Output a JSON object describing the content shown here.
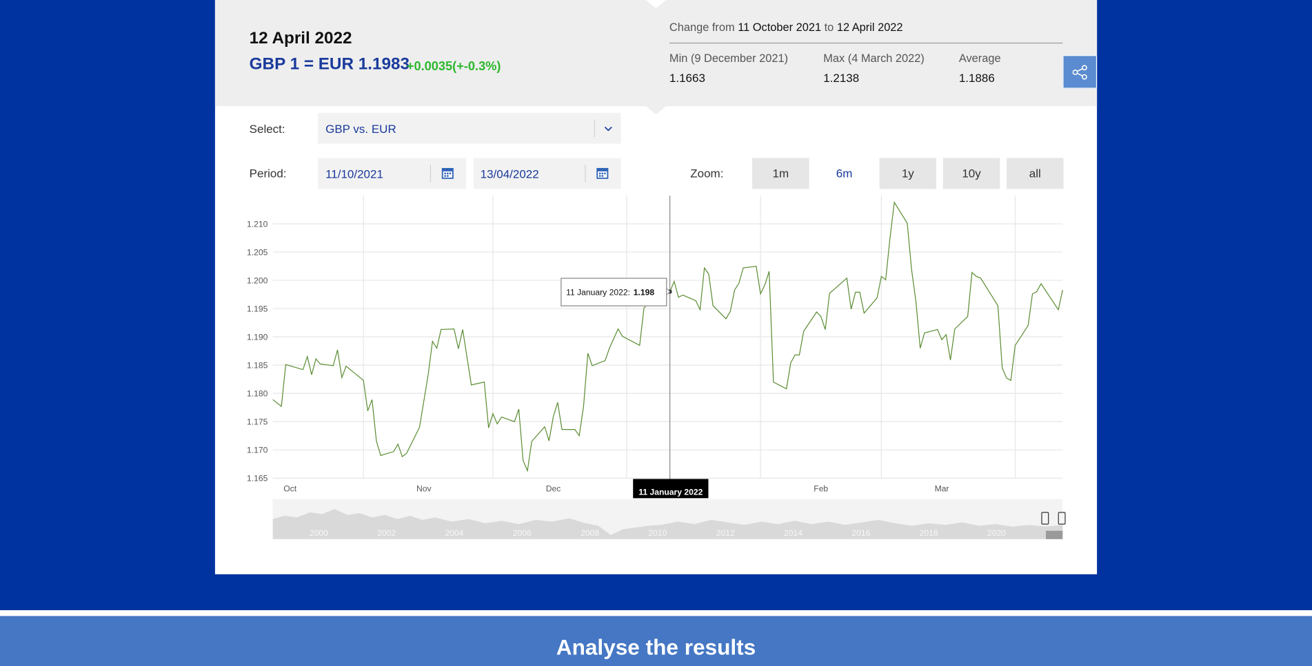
{
  "header": {
    "date": "12 April 2022",
    "rate": "GBP 1 = EUR 1.1983",
    "change": "+0.0035(+-0.3%)"
  },
  "stats": {
    "change_prefix": "Change from",
    "from": "11 October 2021",
    "to_word": "to",
    "to": "12 April 2022",
    "min_label": "Min (9 December 2021)",
    "min_value": "1.1663",
    "max_label": "Max (4 March 2022)",
    "max_value": "1.2138",
    "avg_label": "Average",
    "avg_value": "1.1886"
  },
  "controls": {
    "select_label": "Select:",
    "select_value": "GBP vs. EUR",
    "period_label": "Period:",
    "period_from": "11/10/2021",
    "period_to": "13/04/2022",
    "zoom_label": "Zoom:",
    "zoom_options": [
      "1m",
      "6m",
      "1y",
      "10y",
      "all"
    ],
    "zoom_active": "6m"
  },
  "chart_data": {
    "type": "line",
    "color": "#5b8c32",
    "x": [
      "2021-10-11",
      "2021-10-13",
      "2021-10-14",
      "2021-10-18",
      "2021-10-19",
      "2021-10-20",
      "2021-10-21",
      "2021-10-22",
      "2021-10-25",
      "2021-10-26",
      "2021-10-27",
      "2021-10-28",
      "2021-11-01",
      "2021-11-02",
      "2021-11-03",
      "2021-11-04",
      "2021-11-05",
      "2021-11-08",
      "2021-11-09",
      "2021-11-10",
      "2021-11-11",
      "2021-11-14",
      "2021-11-16",
      "2021-11-17",
      "2021-11-18",
      "2021-11-19",
      "2021-11-22",
      "2021-11-23",
      "2021-11-24",
      "2021-11-26",
      "2021-11-29",
      "2021-11-30",
      "2021-12-01",
      "2021-12-02",
      "2021-12-03",
      "2021-12-06",
      "2021-12-07",
      "2021-12-08",
      "2021-12-09",
      "2021-12-10",
      "2021-12-13",
      "2021-12-14",
      "2021-12-15",
      "2021-12-16",
      "2021-12-17",
      "2021-12-20",
      "2021-12-21",
      "2021-12-22",
      "2021-12-23",
      "2021-12-24",
      "2021-12-27",
      "2021-12-28",
      "2021-12-30",
      "2021-12-31",
      "2022-01-04",
      "2022-01-05",
      "2022-01-07",
      "2022-01-11",
      "2022-01-12",
      "2022-01-13",
      "2022-01-14",
      "2022-01-17",
      "2022-01-18",
      "2022-01-19",
      "2022-01-20",
      "2022-01-21",
      "2022-01-24",
      "2022-01-25",
      "2022-01-26",
      "2022-01-27",
      "2022-01-28",
      "2022-01-31",
      "2022-02-01",
      "2022-02-02",
      "2022-02-03",
      "2022-02-04",
      "2022-02-07",
      "2022-02-08",
      "2022-02-09",
      "2022-02-10",
      "2022-02-11",
      "2022-02-14",
      "2022-02-15",
      "2022-02-16",
      "2022-02-17",
      "2022-02-21",
      "2022-02-22",
      "2022-02-23",
      "2022-02-24",
      "2022-02-25",
      "2022-02-28",
      "2022-03-01",
      "2022-03-02",
      "2022-03-03",
      "2022-03-04",
      "2022-03-07",
      "2022-03-08",
      "2022-03-09",
      "2022-03-10",
      "2022-03-11",
      "2022-03-14",
      "2022-03-15",
      "2022-03-16",
      "2022-03-17",
      "2022-03-18",
      "2022-03-21",
      "2022-03-22",
      "2022-03-23",
      "2022-03-24",
      "2022-03-28",
      "2022-03-29",
      "2022-03-30",
      "2022-03-31",
      "2022-04-01",
      "2022-04-04",
      "2022-04-05",
      "2022-04-06",
      "2022-04-07",
      "2022-04-11",
      "2022-04-12"
    ],
    "values": [
      1.1789,
      1.1777,
      1.1851,
      1.1842,
      1.1865,
      1.1833,
      1.1861,
      1.1852,
      1.1849,
      1.1877,
      1.1828,
      1.1848,
      1.1823,
      1.1769,
      1.1789,
      1.1716,
      1.169,
      1.1697,
      1.171,
      1.1688,
      1.1694,
      1.174,
      1.1833,
      1.1892,
      1.188,
      1.1913,
      1.1914,
      1.1879,
      1.1913,
      1.1815,
      1.182,
      1.1739,
      1.1764,
      1.1746,
      1.1758,
      1.175,
      1.1772,
      1.1681,
      1.1663,
      1.1715,
      1.1741,
      1.1716,
      1.1759,
      1.1784,
      1.1736,
      1.1736,
      1.1725,
      1.1777,
      1.1871,
      1.1849,
      1.1858,
      1.188,
      1.1914,
      1.1901,
      1.1885,
      1.1951,
      1.1968,
      1.198,
      1.1998,
      1.197,
      1.1974,
      1.1964,
      1.1948,
      1.2022,
      1.2011,
      1.1955,
      1.1932,
      1.1945,
      1.1983,
      1.1995,
      1.2022,
      1.2025,
      1.1976,
      1.1992,
      1.2016,
      1.182,
      1.1808,
      1.1854,
      1.1868,
      1.1868,
      1.191,
      1.1944,
      1.1936,
      1.1913,
      1.1977,
      1.2004,
      1.1949,
      1.1979,
      1.1979,
      1.1942,
      1.1969,
      1.2007,
      1.2001,
      1.2075,
      1.2138,
      1.2101,
      1.2019,
      1.1963,
      1.188,
      1.1907,
      1.1913,
      1.1895,
      1.1904,
      1.1859,
      1.1914,
      1.1936,
      1.2014,
      1.2007,
      1.2004,
      1.1955,
      1.1845,
      1.1827,
      1.1823,
      1.1885,
      1.192,
      1.1976,
      1.198,
      1.1994,
      1.1948,
      1.1983
    ],
    "xlim": [
      "2021-10-11",
      "2022-04-12"
    ],
    "xticks": [
      {
        "value": "2021-10-15",
        "label": "Oct"
      },
      {
        "value": "2021-11-15",
        "label": "Nov"
      },
      {
        "value": "2021-12-15",
        "label": "Dec"
      },
      {
        "value": "2022-02-15",
        "label": "Feb"
      },
      {
        "value": "2022-03-15",
        "label": "Mar"
      }
    ],
    "x_gridlines": [
      "2021-11-01",
      "2021-12-01",
      "2022-01-01",
      "2022-02-01",
      "2022-03-01",
      "2022-04-01"
    ],
    "ylim": [
      1.165,
      1.215
    ],
    "yticks": [
      1.165,
      {
        "value": 1.17,
        "label": "1.170"
      },
      1.175,
      {
        "value": 1.18,
        "label": "1.180"
      },
      1.185,
      {
        "value": 1.19,
        "label": "1.190"
      },
      1.195,
      {
        "value": 1.2,
        "label": "1.200"
      },
      1.205,
      {
        "value": 1.21,
        "label": "1.210"
      }
    ],
    "grid": true,
    "crosshair": {
      "x": "2022-01-11",
      "label": "11 January 2022"
    },
    "tooltip": {
      "label": "11 January 2022:",
      "value": 1.198
    },
    "navigator_labels": [
      "2000",
      "2002",
      "2004",
      "2006",
      "2008",
      "2010",
      "2012",
      "2014",
      "2016",
      "2018",
      "2020"
    ]
  },
  "footer": {
    "title": "Analyse the results"
  }
}
